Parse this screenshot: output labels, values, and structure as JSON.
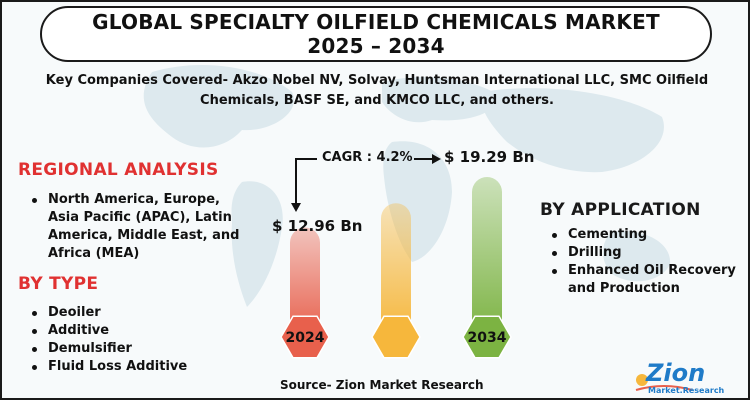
{
  "title": {
    "line1": "GLOBAL SPECIALTY OILFIELD CHEMICALS MARKET",
    "line2": "2025 – 2034"
  },
  "key_companies": "Key Companies Covered- Akzo Nobel NV, Solvay, Huntsman International LLC, SMC Oilfield Chemicals, BASF SE, and KMCO LLC, and others.",
  "regional": {
    "heading": "REGIONAL ANALYSIS",
    "items": [
      "North America, Europe, Asia Pacific (APAC), Latin America, Middle East, and Africa (MEA)"
    ]
  },
  "by_type": {
    "heading": "BY TYPE",
    "items": [
      "Deoiler",
      "Additive",
      "Demulsifier",
      "Fluid Loss Additive"
    ]
  },
  "by_application": {
    "heading": "BY APPLICATION",
    "items": [
      "Cementing",
      "Drilling",
      "Enhanced Oil Recovery and Production"
    ]
  },
  "growth": {
    "cagr_label": "CAGR : 4.2%",
    "start_value": "$ 12.96 Bn",
    "end_value": "$ 19.29 Bn",
    "start_year": "2024",
    "end_year": "2034",
    "bars": [
      {
        "label": "2024",
        "value": 12.96,
        "color": "#e8604c"
      },
      {
        "label": "",
        "value": 16.0,
        "color": "#f6b73c"
      },
      {
        "label": "2034",
        "value": 19.29,
        "color": "#7cb342"
      }
    ]
  },
  "source": "Source- Zion Market Research",
  "logo": {
    "word": "Zion",
    "tagline": "Market.Research"
  },
  "colors": {
    "accent_red": "#e03131",
    "title_border": "#1a1a1a",
    "logo_blue": "#1f7bc8"
  }
}
